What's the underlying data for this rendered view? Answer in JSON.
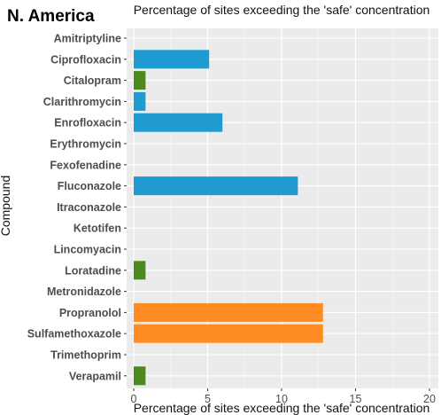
{
  "region_title": "N. America",
  "chart_data": {
    "type": "bar",
    "orientation": "horizontal",
    "title": "Percentage of sites exceeding the 'safe' concentration",
    "xlabel": "Percentage of sites exceeding the 'safe' concentration",
    "ylabel": "Compound",
    "xlim": [
      0,
      20
    ],
    "x_ticks": [
      "0",
      "5",
      "10",
      "15",
      "20"
    ],
    "grid": true,
    "categories": [
      "Amitriptyline",
      "Ciprofloxacin",
      "Citalopram",
      "Clarithromycin",
      "Enrofloxacin",
      "Erythromycin",
      "Fexofenadine",
      "Fluconazole",
      "Itraconazole",
      "Ketotifen",
      "Lincomyacin",
      "Loratadine",
      "Metronidazole",
      "Propranolol",
      "Sulfamethoxazole",
      "Trimethoprim",
      "Verapamil"
    ],
    "values": [
      0,
      5.1,
      0.8,
      0.8,
      6.0,
      0,
      0,
      11.1,
      0,
      0,
      0,
      0.8,
      0,
      12.8,
      12.8,
      0,
      0.8
    ],
    "bar_colors": [
      "#1f9bd1",
      "#1f9bd1",
      "#4d8a1e",
      "#1f9bd1",
      "#1f9bd1",
      "#1f9bd1",
      "#1f9bd1",
      "#1f9bd1",
      "#1f9bd1",
      "#1f9bd1",
      "#1f9bd1",
      "#4d8a1e",
      "#1f9bd1",
      "#ff8c24",
      "#ff8c24",
      "#1f9bd1",
      "#4d8a1e"
    ],
    "panel_background": "#ebebeb",
    "grid_color": "#ffffff"
  }
}
